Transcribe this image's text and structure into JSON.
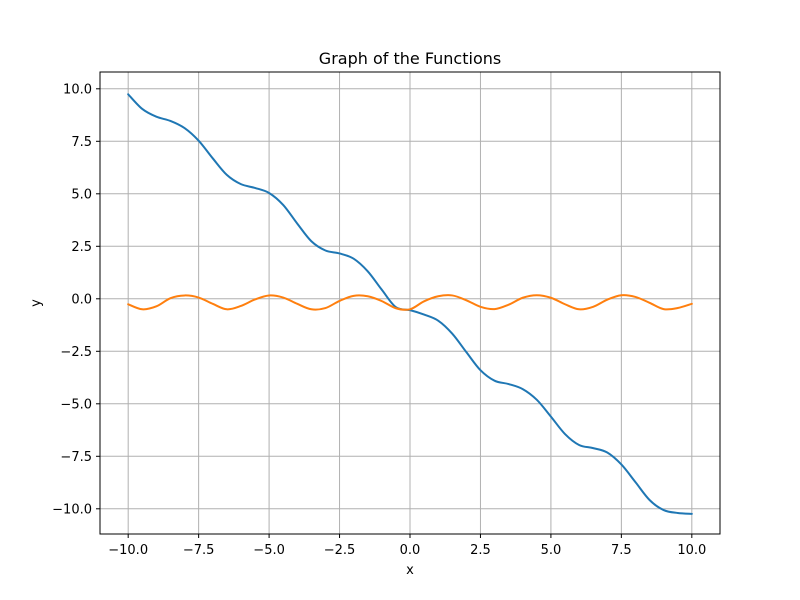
{
  "chart_data": {
    "type": "line",
    "title": "Graph of the Functions",
    "xlabel": "x",
    "ylabel": "y",
    "xlim": [
      -11.0,
      11.0
    ],
    "ylim": [
      -11.2,
      10.8
    ],
    "grid": true,
    "legend": "none",
    "x_ticks": [
      -10.0,
      -7.5,
      -5.0,
      -2.5,
      0.0,
      2.5,
      5.0,
      7.5,
      10.0
    ],
    "x_tick_labels": [
      "−10.0",
      "−7.5",
      "−5.0",
      "−2.5",
      "0.0",
      "2.5",
      "5.0",
      "7.5",
      "10.0"
    ],
    "y_ticks": [
      -10.0,
      -7.5,
      -5.0,
      -2.5,
      0.0,
      2.5,
      5.0,
      7.5,
      10.0
    ],
    "y_tick_labels": [
      "−10.0",
      "−7.5",
      "−5.0",
      "−2.5",
      "0.0",
      "2.5",
      "5.0",
      "7.5",
      "10.0"
    ],
    "series": [
      {
        "color": "#1f77b4",
        "x": [
          -10,
          -9.5,
          -9,
          -8.5,
          -8,
          -7.5,
          -7,
          -6.5,
          -6,
          -5.5,
          -5,
          -4.5,
          -4,
          -3.5,
          -3,
          -2.5,
          -2,
          -1.5,
          -1,
          -0.5,
          0,
          0.5,
          1,
          1.5,
          2,
          2.5,
          3,
          3.5,
          4,
          4.5,
          5,
          5.5,
          6,
          6.5,
          7,
          7.5,
          8,
          8.5,
          9,
          9.5,
          10
        ],
        "y": [
          9.74,
          9.04,
          8.67,
          8.47,
          8.13,
          7.53,
          6.69,
          5.9,
          5.46,
          5.28,
          5.04,
          4.47,
          3.58,
          2.74,
          2.3,
          2.16,
          1.91,
          1.31,
          0.43,
          -0.4,
          -0.54,
          -0.75,
          -1.04,
          -1.66,
          -2.54,
          -3.4,
          -3.9,
          -4.06,
          -4.3,
          -4.81,
          -5.61,
          -6.44,
          -6.96,
          -7.11,
          -7.32,
          -7.89,
          -8.73,
          -9.58,
          -10.06,
          -10.2,
          -10.24
        ]
      },
      {
        "color": "#ff7f0e",
        "x": [
          -10,
          -9.5,
          -9,
          -8.5,
          -8,
          -7.5,
          -7,
          -6.5,
          -6,
          -5.5,
          -5,
          -4.5,
          -4,
          -3.5,
          -3,
          -2.5,
          -2,
          -1.5,
          -1,
          -0.5,
          0,
          0.5,
          1,
          1.5,
          2,
          2.5,
          3,
          3.5,
          4,
          4.5,
          5,
          5.5,
          6,
          6.5,
          7,
          7.5,
          8,
          8.5,
          9,
          9.5,
          10
        ],
        "y": [
          -0.26,
          -0.5,
          -0.36,
          0.03,
          0.16,
          0.06,
          -0.24,
          -0.5,
          -0.34,
          -0.03,
          0.16,
          0.06,
          -0.24,
          -0.5,
          -0.44,
          -0.1,
          0.14,
          0.12,
          -0.11,
          -0.45,
          -0.5,
          -0.12,
          0.12,
          0.16,
          -0.07,
          -0.38,
          -0.49,
          -0.28,
          0.05,
          0.17,
          0.05,
          -0.26,
          -0.5,
          -0.38,
          -0.04,
          0.17,
          0.09,
          -0.19,
          -0.49,
          -0.44,
          -0.24
        ]
      }
    ]
  }
}
